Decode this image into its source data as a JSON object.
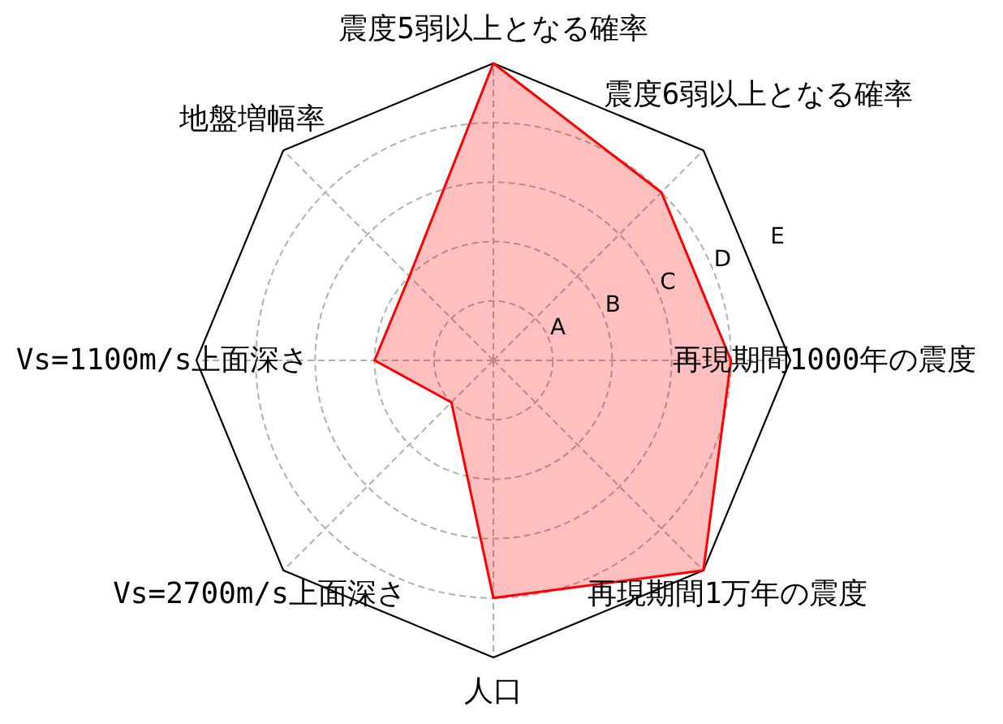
{
  "chart_data": {
    "type": "radar",
    "categories": [
      "震度5弱以上となる確率",
      "震度6弱以上となる確率",
      "再現期間1000年の震度",
      "再現期間1万年の震度",
      "人口",
      "Vs=2700m/s上面深さ",
      "Vs=1100m/s上面深さ",
      "地盤増幅率"
    ],
    "series": [
      {
        "color": "#ff0000",
        "values": [
          5,
          4,
          4,
          5,
          4,
          1,
          2,
          2
        ]
      }
    ],
    "ylim": [
      0,
      5
    ],
    "yticks": [
      {
        "value": 1,
        "label": "A"
      },
      {
        "value": 2,
        "label": "B"
      },
      {
        "value": 3,
        "label": "C"
      },
      {
        "value": 4,
        "label": "D"
      },
      {
        "value": 5,
        "label": "E"
      }
    ],
    "grid": true
  }
}
